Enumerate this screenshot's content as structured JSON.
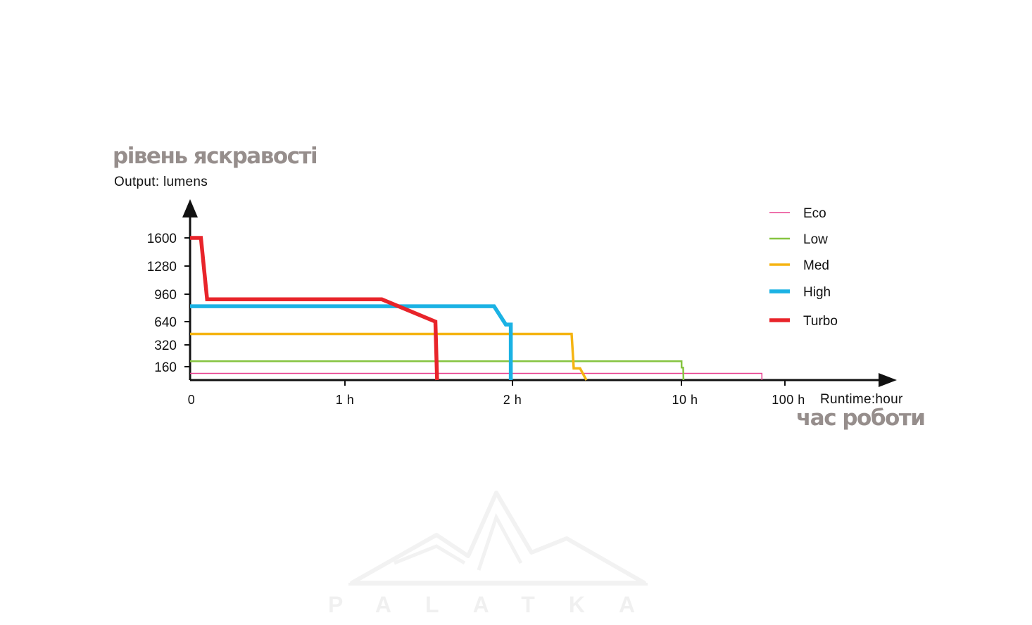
{
  "chart_data": {
    "type": "line",
    "title": "рівень яскравості",
    "ylabel": "Output: lumens",
    "xlabel": "Runtime:hour",
    "xlabel_secondary": "час роботи",
    "y_ticks": [
      1600,
      1280,
      960,
      640,
      320,
      160
    ],
    "x_ticks": [
      "0",
      "1 h",
      "2 h",
      "10 h",
      "100 h"
    ],
    "x_scale": "piecewise",
    "x_tick_hours": [
      0,
      1,
      2,
      10,
      100
    ],
    "grid": false,
    "legend_position": "top-right",
    "series": [
      {
        "name": "Eco",
        "color": "#e8408f",
        "points": [
          [
            0,
            80
          ],
          [
            80,
            80
          ],
          [
            80,
            0
          ]
        ]
      },
      {
        "name": "Low",
        "color": "#86c440",
        "points": [
          [
            0,
            200
          ],
          [
            10.1,
            200
          ],
          [
            10.1,
            150
          ],
          [
            11.5,
            150
          ],
          [
            11.8,
            0
          ]
        ]
      },
      {
        "name": "Med",
        "color": "#f5b412",
        "points": [
          [
            0,
            470
          ],
          [
            4.8,
            470
          ],
          [
            4.9,
            140
          ],
          [
            5.2,
            140
          ],
          [
            5.5,
            0
          ]
        ]
      },
      {
        "name": "High",
        "color": "#1bb2e4",
        "points": [
          [
            0,
            820
          ],
          [
            1.89,
            820
          ],
          [
            1.96,
            600
          ],
          [
            1.99,
            600
          ],
          [
            1.99,
            0
          ]
        ]
      },
      {
        "name": "Turbo",
        "color": "#e8242a",
        "points": [
          [
            0,
            1600
          ],
          [
            0.07,
            1600
          ],
          [
            0.11,
            900
          ],
          [
            1.22,
            900
          ],
          [
            1.54,
            640
          ],
          [
            1.55,
            0
          ]
        ]
      }
    ]
  },
  "watermark_text": "PALATKA"
}
